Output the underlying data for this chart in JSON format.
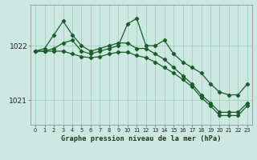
{
  "background_color": "#cce8e0",
  "grid_color": "#99ccbb",
  "line_color": "#1a5c2a",
  "title": "Graphe pression niveau de la mer (hPa)",
  "xlim": [
    -0.5,
    23.5
  ],
  "ylim": [
    1020.55,
    1022.75
  ],
  "yticks": [
    1021,
    1022
  ],
  "xticks": [
    0,
    1,
    2,
    3,
    4,
    5,
    6,
    7,
    8,
    9,
    10,
    11,
    12,
    13,
    14,
    15,
    16,
    17,
    18,
    19,
    20,
    21,
    22,
    23
  ],
  "line1_x": [
    0,
    1,
    2,
    3,
    4,
    5,
    6,
    7,
    8,
    9,
    10,
    11,
    12,
    13,
    14,
    15,
    16,
    17,
    18,
    19,
    20,
    21,
    22,
    23
  ],
  "line1_y": [
    1021.9,
    1021.9,
    1021.95,
    1022.05,
    1022.1,
    1021.9,
    1021.85,
    1021.9,
    1021.95,
    1022.0,
    1022.4,
    1022.5,
    1022.0,
    1022.0,
    1022.1,
    1021.85,
    1021.7,
    1021.6,
    1021.5,
    1021.3,
    1021.15,
    1021.1,
    1021.1,
    1021.3
  ],
  "line2_x": [
    0,
    1,
    2,
    3,
    4,
    5,
    6,
    7,
    8,
    9,
    10,
    11,
    12,
    13,
    14,
    15,
    16,
    17,
    18,
    19,
    20,
    21,
    22,
    23
  ],
  "line2_y": [
    1021.9,
    1021.95,
    1022.2,
    1022.45,
    1022.2,
    1022.0,
    1021.9,
    1021.95,
    1022.0,
    1022.05,
    1022.05,
    1021.95,
    1021.95,
    1021.85,
    1021.75,
    1021.6,
    1021.45,
    1021.3,
    1021.1,
    1020.95,
    1020.78,
    1020.78,
    1020.78,
    1020.95
  ],
  "line3_x": [
    0,
    1,
    2,
    3,
    4,
    5,
    6,
    7,
    8,
    9,
    10,
    11,
    12,
    13,
    14,
    15,
    16,
    17,
    18,
    19,
    20,
    21,
    22,
    23
  ],
  "line3_y": [
    1021.9,
    1021.9,
    1021.9,
    1021.9,
    1021.85,
    1021.8,
    1021.78,
    1021.8,
    1021.85,
    1021.88,
    1021.88,
    1021.82,
    1021.78,
    1021.7,
    1021.6,
    1021.5,
    1021.38,
    1021.25,
    1021.05,
    1020.9,
    1020.72,
    1020.72,
    1020.72,
    1020.9
  ]
}
